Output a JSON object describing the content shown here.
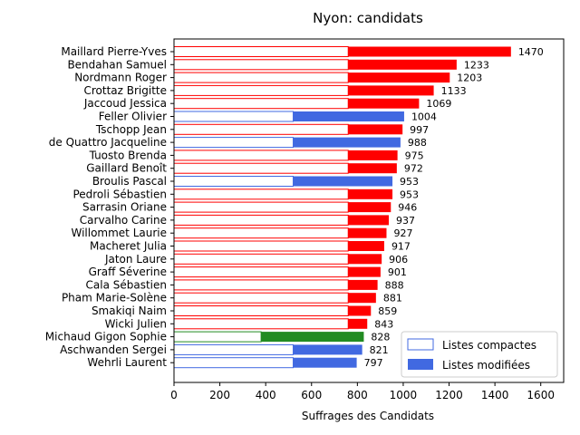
{
  "chart_data": {
    "type": "bar",
    "orientation": "horizontal",
    "title": "Nyon: candidats",
    "xlabel": "Suffrages des Candidats",
    "ylabel": "",
    "xlim": [
      0,
      1700
    ],
    "xticks": [
      0,
      200,
      400,
      600,
      800,
      1000,
      1200,
      1400,
      1600
    ],
    "legend_position": "lower-right",
    "legend": [
      {
        "label": "Listes compactes",
        "style": "outline",
        "color": "#4169e1"
      },
      {
        "label": "Listes modifiées",
        "style": "filled",
        "color": "#4169e1"
      }
    ],
    "categories": [
      "Maillard Pierre-Yves",
      "Bendahan Samuel",
      "Nordmann Roger",
      "Crottaz Brigitte",
      "Jaccoud Jessica",
      "Feller Olivier",
      "Tschopp Jean",
      "de Quattro Jacqueline",
      "Tuosto Brenda",
      "Gaillard Benoît",
      "Broulis Pascal",
      "Pedroli Sébastien",
      "Sarrasin Oriane",
      "Carvalho Carine",
      "Willommet Laurie",
      "Macheret Julia",
      "Jaton Laure",
      "Graff Séverine",
      "Cala Sébastien",
      "Pham Marie-Solène",
      "Smakiqi Naim",
      "Wicki Julien",
      "Michaud Gigon Sophie",
      "Aschwanden Sergei",
      "Wehrli Laurent"
    ],
    "series": [
      {
        "name": "Listes compactes",
        "values": [
          760,
          760,
          760,
          760,
          760,
          520,
          760,
          520,
          760,
          760,
          520,
          760,
          760,
          760,
          760,
          760,
          760,
          760,
          760,
          760,
          760,
          760,
          380,
          520,
          520
        ]
      },
      {
        "name": "Listes modifiées",
        "values": [
          710,
          473,
          443,
          373,
          309,
          484,
          237,
          468,
          215,
          212,
          433,
          193,
          186,
          177,
          167,
          157,
          146,
          141,
          128,
          121,
          99,
          83,
          448,
          301,
          277
        ]
      }
    ],
    "totals": [
      1470,
      1233,
      1203,
      1133,
      1069,
      1004,
      997,
      988,
      975,
      972,
      953,
      953,
      946,
      937,
      927,
      917,
      906,
      901,
      888,
      881,
      859,
      843,
      828,
      821,
      797
    ],
    "bar_colors": [
      "#ff0000",
      "#ff0000",
      "#ff0000",
      "#ff0000",
      "#ff0000",
      "#4169e1",
      "#ff0000",
      "#4169e1",
      "#ff0000",
      "#ff0000",
      "#4169e1",
      "#ff0000",
      "#ff0000",
      "#ff0000",
      "#ff0000",
      "#ff0000",
      "#ff0000",
      "#ff0000",
      "#ff0000",
      "#ff0000",
      "#ff0000",
      "#ff0000",
      "#228b22",
      "#4169e1",
      "#4169e1"
    ]
  }
}
